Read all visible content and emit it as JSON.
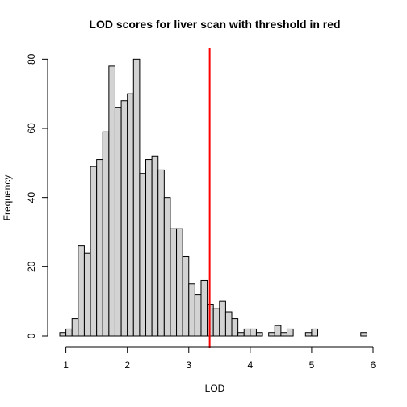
{
  "chart_data": {
    "type": "bar",
    "title": "LOD scores for liver scan with threshold in red",
    "xlabel": "LOD",
    "ylabel": "Frequency",
    "xlim": [
      0.9,
      6.0
    ],
    "ylim": [
      0,
      85
    ],
    "x_ticks": [
      1,
      2,
      3,
      4,
      5,
      6
    ],
    "y_ticks": [
      0,
      20,
      40,
      60,
      80
    ],
    "bin_width": 0.1,
    "bins_start": [
      0.9,
      1.0,
      1.1,
      1.2,
      1.3,
      1.4,
      1.5,
      1.6,
      1.7,
      1.8,
      1.9,
      2.0,
      2.1,
      2.2,
      2.3,
      2.4,
      2.5,
      2.6,
      2.7,
      2.8,
      2.9,
      3.0,
      3.1,
      3.2,
      3.3,
      3.4,
      3.5,
      3.6,
      3.7,
      3.8,
      3.9,
      4.0,
      4.1,
      4.2,
      4.3,
      4.4,
      4.5,
      4.6,
      4.7,
      4.8,
      4.9,
      5.0,
      5.1,
      5.2,
      5.3,
      5.4,
      5.5,
      5.6,
      5.7,
      5.8
    ],
    "counts": [
      1,
      2,
      5,
      26,
      24,
      49,
      51,
      59,
      78,
      66,
      68,
      70,
      80,
      47,
      51,
      52,
      48,
      40,
      31,
      31,
      23,
      15,
      12,
      16,
      9,
      8,
      10,
      7,
      5,
      1,
      2,
      2,
      1,
      0,
      1,
      3,
      1,
      2,
      0,
      0,
      1,
      2,
      0,
      0,
      0,
      0,
      0,
      0,
      0,
      1
    ],
    "threshold": 3.34,
    "threshold_color": "#ff0000",
    "bar_color": "#d3d3d3",
    "grid": false
  }
}
